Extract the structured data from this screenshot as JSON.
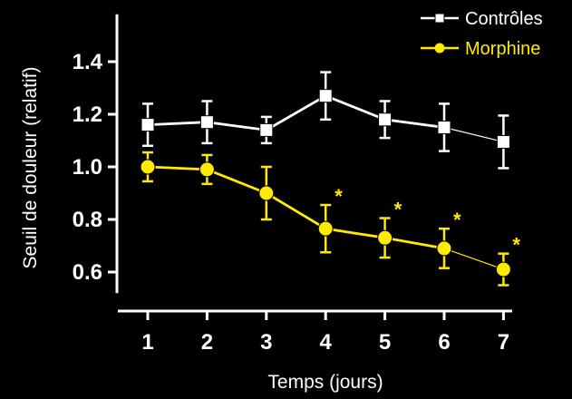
{
  "chart_data": {
    "type": "line",
    "xlabel": "Temps (jours)",
    "ylabel": "Seuil de douleur (relatif)",
    "x": [
      1,
      2,
      3,
      4,
      5,
      6,
      7
    ],
    "ylim": [
      0.52,
      1.58
    ],
    "yticks": [
      "0.6",
      "0.8",
      "1.0",
      "1.2",
      "1.4"
    ],
    "xticks": [
      "1",
      "2",
      "3",
      "4",
      "5",
      "6",
      "7"
    ],
    "grid": false,
    "legend": "top-right",
    "series": [
      {
        "name": "Contrôles",
        "color": "#ffffff",
        "marker": "square",
        "values": [
          1.16,
          1.17,
          1.14,
          1.27,
          1.18,
          1.15,
          1.095
        ],
        "errors": [
          0.08,
          0.08,
          0.05,
          0.09,
          0.07,
          0.09,
          0.1
        ],
        "significant": [
          false,
          false,
          false,
          false,
          false,
          false,
          false
        ]
      },
      {
        "name": "Morphine",
        "color": "#ffeb00",
        "marker": "circle",
        "values": [
          1.0,
          0.99,
          0.9,
          0.765,
          0.73,
          0.69,
          0.61
        ],
        "errors": [
          0.055,
          0.055,
          0.1,
          0.09,
          0.075,
          0.075,
          0.06
        ],
        "significant": [
          false,
          false,
          false,
          true,
          true,
          true,
          true
        ]
      }
    ],
    "annotation_symbol": "*"
  }
}
